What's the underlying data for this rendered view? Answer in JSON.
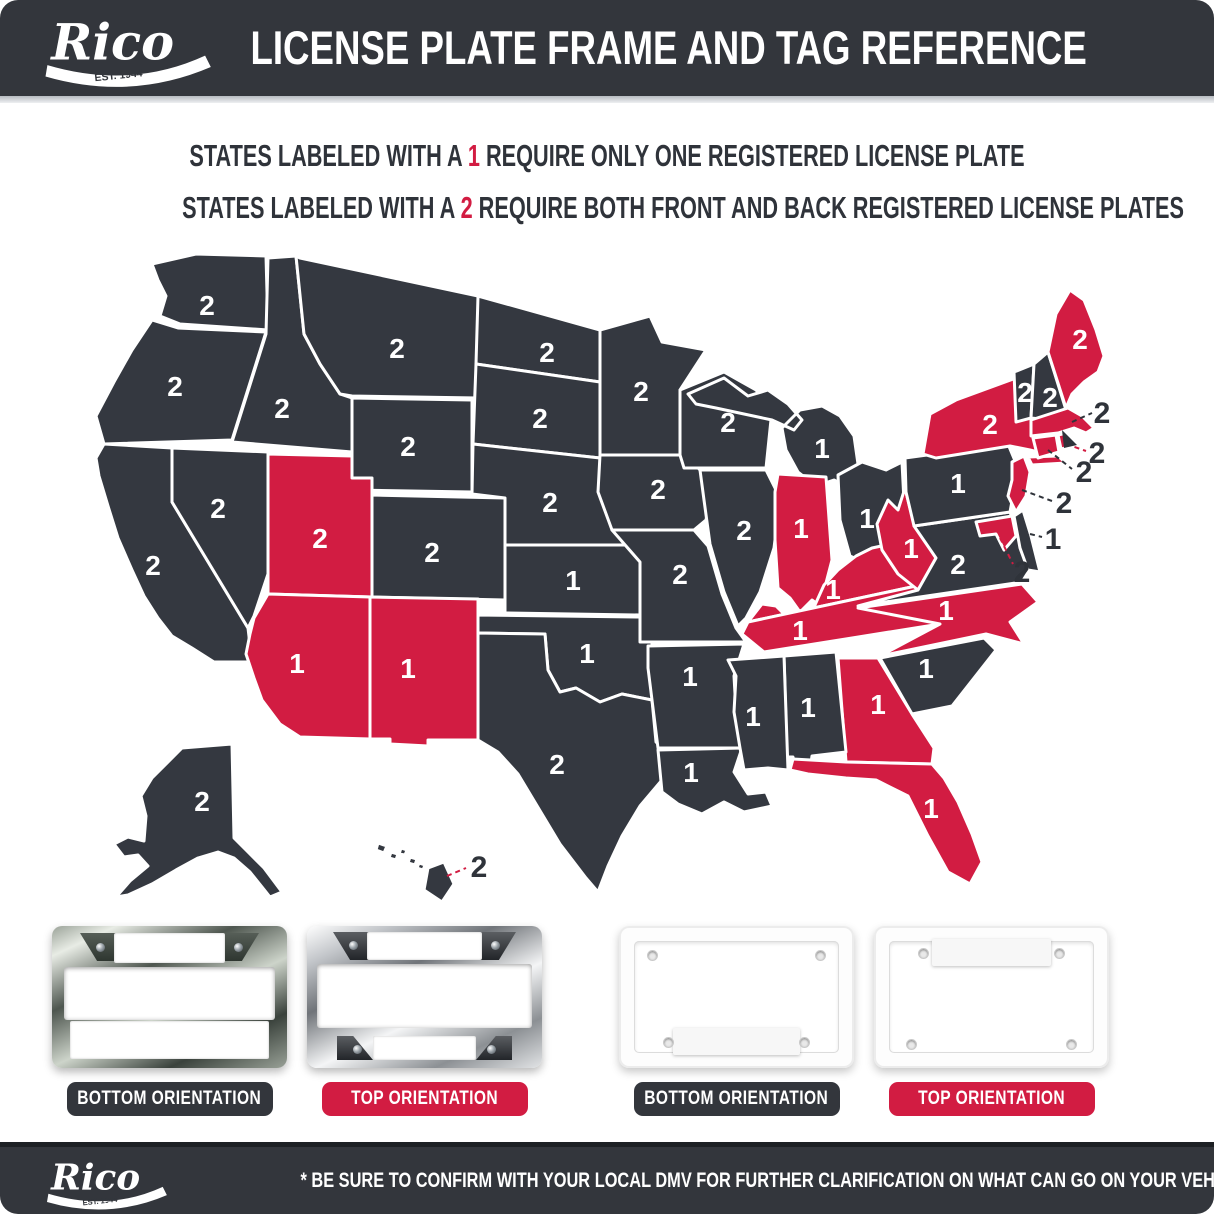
{
  "colors": {
    "dark": "#343840",
    "red": "#d21c42",
    "map_border": "#ffffff",
    "callout_text": "#2f333a",
    "badge_dark": "#33363c",
    "badge_red": "#d21c42"
  },
  "brand": {
    "name": "Rico",
    "tagline": "EST. 1944"
  },
  "header": {
    "title": "LICENSE PLATE FRAME AND TAG REFERENCE"
  },
  "legend": {
    "line1": {
      "prefix": "STATES LABELED WITH A ",
      "number": "1",
      "suffix": " REQUIRE ONLY ONE REGISTERED LICENSE PLATE"
    },
    "line2": {
      "prefix": "STATES LABELED WITH A ",
      "number": "2",
      "suffix": " REQUIRE BOTH FRONT AND BACK REGISTERED LICENSE PLATES"
    }
  },
  "map": {
    "states": [
      {
        "abbr": "WA",
        "name": "Washington",
        "plates": "2",
        "red": false
      },
      {
        "abbr": "OR",
        "name": "Oregon",
        "plates": "2",
        "red": false
      },
      {
        "abbr": "CA",
        "name": "California",
        "plates": "2",
        "red": false
      },
      {
        "abbr": "NV",
        "name": "Nevada",
        "plates": "2",
        "red": false
      },
      {
        "abbr": "ID",
        "name": "Idaho",
        "plates": "2",
        "red": false
      },
      {
        "abbr": "MT",
        "name": "Montana",
        "plates": "2",
        "red": false
      },
      {
        "abbr": "WY",
        "name": "Wyoming",
        "plates": "2",
        "red": false
      },
      {
        "abbr": "UT",
        "name": "Utah",
        "plates": "2",
        "red": true
      },
      {
        "abbr": "CO",
        "name": "Colorado",
        "plates": "2",
        "red": false
      },
      {
        "abbr": "AZ",
        "name": "Arizona",
        "plates": "1",
        "red": true
      },
      {
        "abbr": "NM",
        "name": "New Mexico",
        "plates": "1",
        "red": true
      },
      {
        "abbr": "ND",
        "name": "North Dakota",
        "plates": "2",
        "red": false
      },
      {
        "abbr": "SD",
        "name": "South Dakota",
        "plates": "2",
        "red": false
      },
      {
        "abbr": "NE",
        "name": "Nebraska",
        "plates": "2",
        "red": false
      },
      {
        "abbr": "KS",
        "name": "Kansas",
        "plates": "1",
        "red": false
      },
      {
        "abbr": "OK",
        "name": "Oklahoma",
        "plates": "1",
        "red": false
      },
      {
        "abbr": "TX",
        "name": "Texas",
        "plates": "2",
        "red": false
      },
      {
        "abbr": "MN",
        "name": "Minnesota",
        "plates": "2",
        "red": false
      },
      {
        "abbr": "IA",
        "name": "Iowa",
        "plates": "2",
        "red": false
      },
      {
        "abbr": "MO",
        "name": "Missouri",
        "plates": "2",
        "red": false
      },
      {
        "abbr": "AR",
        "name": "Arkansas",
        "plates": "1",
        "red": false
      },
      {
        "abbr": "LA",
        "name": "Louisiana",
        "plates": "1",
        "red": false
      },
      {
        "abbr": "WI",
        "name": "Wisconsin",
        "plates": "2",
        "red": false
      },
      {
        "abbr": "IL",
        "name": "Illinois",
        "plates": "2",
        "red": false
      },
      {
        "abbr": "MI",
        "name": "Michigan",
        "plates": "1",
        "red": false
      },
      {
        "abbr": "IN",
        "name": "Indiana",
        "plates": "1",
        "red": true
      },
      {
        "abbr": "OH",
        "name": "Ohio",
        "plates": "1",
        "red": false
      },
      {
        "abbr": "KY",
        "name": "Kentucky",
        "plates": "1",
        "red": true
      },
      {
        "abbr": "TN",
        "name": "Tennessee",
        "plates": "1",
        "red": true
      },
      {
        "abbr": "WV",
        "name": "West Virginia",
        "plates": "1",
        "red": true
      },
      {
        "abbr": "VA",
        "name": "Virginia",
        "plates": "2",
        "red": false
      },
      {
        "abbr": "NC",
        "name": "North Carolina",
        "plates": "1",
        "red": true
      },
      {
        "abbr": "SC",
        "name": "South Carolina",
        "plates": "1",
        "red": false
      },
      {
        "abbr": "GA",
        "name": "Georgia",
        "plates": "1",
        "red": true
      },
      {
        "abbr": "AL",
        "name": "Alabama",
        "plates": "1",
        "red": false
      },
      {
        "abbr": "MS",
        "name": "Mississippi",
        "plates": "1",
        "red": false
      },
      {
        "abbr": "FL",
        "name": "Florida",
        "plates": "1",
        "red": true
      },
      {
        "abbr": "PA",
        "name": "Pennsylvania",
        "plates": "1",
        "red": false
      },
      {
        "abbr": "NY",
        "name": "New York",
        "plates": "2",
        "red": true
      },
      {
        "abbr": "VT",
        "name": "Vermont",
        "plates": "2",
        "red": false
      },
      {
        "abbr": "NH",
        "name": "New Hampshire",
        "plates": "2",
        "red": false
      },
      {
        "abbr": "ME",
        "name": "Maine",
        "plates": "2",
        "red": true
      },
      {
        "abbr": "MA",
        "name": "Massachusetts",
        "plates": "2",
        "red": true
      },
      {
        "abbr": "RI",
        "name": "Rhode Island",
        "plates": "2",
        "red": true
      },
      {
        "abbr": "CT",
        "name": "Connecticut",
        "plates": "2",
        "red": true
      },
      {
        "abbr": "NJ",
        "name": "New Jersey",
        "plates": "2",
        "red": true
      },
      {
        "abbr": "DE",
        "name": "Delaware",
        "plates": "1",
        "red": false
      },
      {
        "abbr": "MD",
        "name": "Maryland",
        "plates": "2",
        "red": true
      },
      {
        "abbr": "AK",
        "name": "Alaska",
        "plates": "2",
        "red": false
      },
      {
        "abbr": "HI",
        "name": "Hawaii",
        "plates": "2",
        "red": false
      }
    ]
  },
  "frames": [
    {
      "style": "chrome-dark",
      "label": "BOTTOM ORIENTATION",
      "badge": "dark"
    },
    {
      "style": "chrome",
      "label": "TOP ORIENTATION",
      "badge": "red"
    },
    {
      "style": "white",
      "label": "BOTTOM ORIENTATION",
      "badge": "dark"
    },
    {
      "style": "white",
      "label": "TOP ORIENTATION",
      "badge": "red"
    }
  ],
  "footer": {
    "note": "* BE SURE TO CONFIRM WITH YOUR LOCAL DMV FOR FURTHER CLARIFICATION ON WHAT CAN GO ON YOUR VEHICLE *"
  }
}
